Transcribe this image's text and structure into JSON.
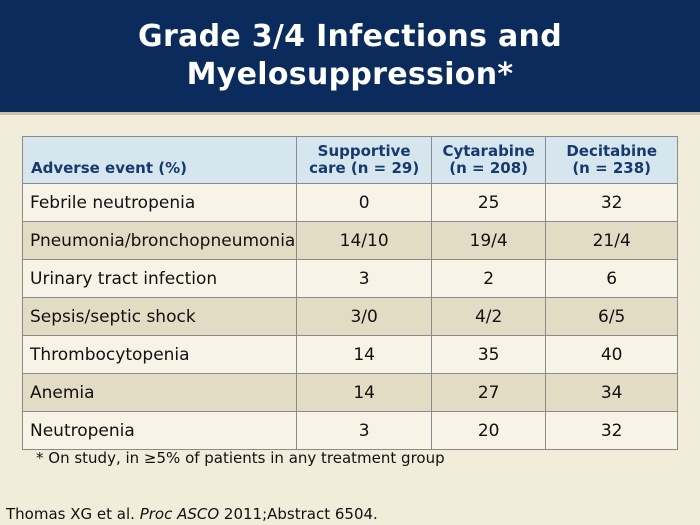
{
  "header": {
    "title_line1": "Grade 3/4 Infections and",
    "title_line2": "Myelosuppression*"
  },
  "table": {
    "columns": [
      {
        "line1": "Adverse event (%)",
        "line2": ""
      },
      {
        "line1": "Supportive",
        "line2": "care (n = 29)"
      },
      {
        "line1": "Cytarabine",
        "line2": "(n = 208)"
      },
      {
        "line1": "Decitabine",
        "line2": "(n = 238)"
      }
    ],
    "rows": [
      [
        "Febrile neutropenia",
        "0",
        "25",
        "32"
      ],
      [
        "Pneumonia/bronchopneumonia",
        "14/10",
        "19/4",
        "21/4"
      ],
      [
        "Urinary tract infection",
        "3",
        "2",
        "6"
      ],
      [
        "Sepsis/septic shock",
        "3/0",
        "4/2",
        "6/5"
      ],
      [
        "Thrombocytopenia",
        "14",
        "35",
        "40"
      ],
      [
        "Anemia",
        "14",
        "27",
        "34"
      ],
      [
        "Neutropenia",
        "3",
        "20",
        "32"
      ]
    ]
  },
  "footnote": "* On study, in ≥5% of patients in any treatment group",
  "citation": {
    "authors": "Thomas XG et al. ",
    "journal": "Proc ASCO",
    "details": " 2011;Abstract 6504."
  },
  "colors": {
    "header_bg": "#0a2b5c",
    "page_bg": "#f2ecdb",
    "table_header_bg": "#d6e6ee",
    "table_header_text": "#153a6e",
    "row_light": "#f7f3e6",
    "row_dark": "#e3dcc4"
  }
}
